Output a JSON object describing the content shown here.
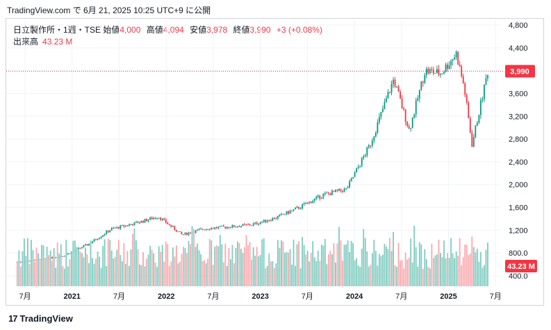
{
  "header": {
    "text": "TradingView.com で 6月 21, 2025 10:25 UTC+9 に公開"
  },
  "legend": {
    "symbol": "日立製作所・1週・TSE",
    "open_label": "始値",
    "open": "4,000",
    "high_label": "高値",
    "high": "4,094",
    "low_label": "安値",
    "low": "3,978",
    "close_label": "終値",
    "close": "3,990",
    "change": "+3 (+0.08%)",
    "volume_label": "出来高",
    "volume": "43.23 M"
  },
  "footer": {
    "logo_text": "TradingView"
  },
  "colors": {
    "up": "#089981",
    "down": "#f23645",
    "up_vol": "#80ccc0",
    "down_vol": "#f9a9ae",
    "grid": "#f0f3fa",
    "price_line": "#f23645"
  },
  "chart_data": {
    "type": "candlestick",
    "price_axis_ticks": [
      "4,800",
      "4,400",
      "4,000",
      "3,600",
      "3,200",
      "2,800",
      "2,400",
      "2,000",
      "1,600",
      "1,200",
      "800.0",
      "400.0"
    ],
    "price_axis_values": [
      4800,
      4400,
      4000,
      3600,
      3200,
      2800,
      2400,
      2000,
      1600,
      1200,
      800,
      400
    ],
    "ylim": [
      400,
      4800
    ],
    "time_axis_labels": [
      "7月",
      "2021",
      "7月",
      "2022",
      "7月",
      "2023",
      "7月",
      "2024",
      "7月",
      "2025",
      "7月"
    ],
    "last_price_label": "3,990",
    "last_price": 3990,
    "volume_label": "43.23 M",
    "close_series": [
      {
        "t": "2020-06",
        "c": 640
      },
      {
        "t": "2020-09",
        "c": 680
      },
      {
        "t": "2020-12",
        "c": 760
      },
      {
        "t": "2021-03",
        "c": 950
      },
      {
        "t": "2021-06",
        "c": 1220
      },
      {
        "t": "2021-09",
        "c": 1320
      },
      {
        "t": "2021-12",
        "c": 1440
      },
      {
        "t": "2022-03",
        "c": 1120
      },
      {
        "t": "2022-06",
        "c": 1230
      },
      {
        "t": "2022-09",
        "c": 1260
      },
      {
        "t": "2022-12",
        "c": 1300
      },
      {
        "t": "2023-03",
        "c": 1420
      },
      {
        "t": "2023-06",
        "c": 1600
      },
      {
        "t": "2023-09",
        "c": 1820
      },
      {
        "t": "2023-12",
        "c": 1920
      },
      {
        "t": "2024-03",
        "c": 2700
      },
      {
        "t": "2024-06",
        "c": 3850
      },
      {
        "t": "2024-08",
        "c": 2950
      },
      {
        "t": "2024-10",
        "c": 4000
      },
      {
        "t": "2024-12",
        "c": 3950
      },
      {
        "t": "2025-02",
        "c": 4300
      },
      {
        "t": "2025-03",
        "c": 3700
      },
      {
        "t": "2025-04",
        "c": 2700
      },
      {
        "t": "2025-06",
        "c": 3990
      }
    ]
  }
}
